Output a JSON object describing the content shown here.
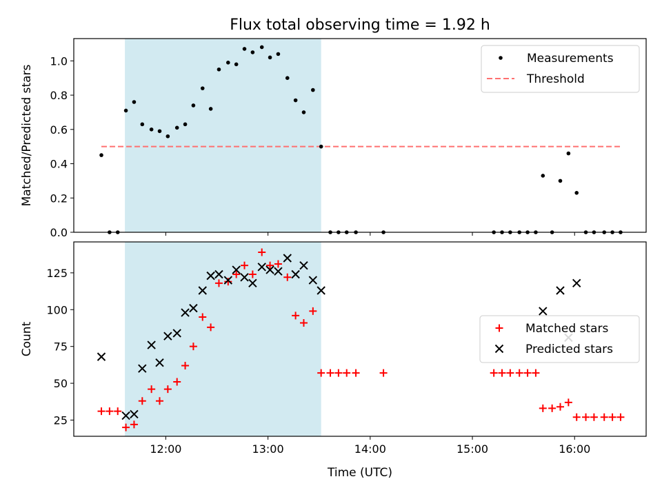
{
  "figure": {
    "title": "Flux total observing time = 1.92 h",
    "xlabel": "Time (UTC)",
    "shaded_span_hours": [
      11.6,
      13.52
    ],
    "shade_color": "#add8e6"
  },
  "chart_data": [
    {
      "type": "scatter",
      "name": "ratio-panel",
      "ylabel": "Matched/Predicted stars",
      "xlim_hours": [
        11.1,
        16.7
      ],
      "ylim": [
        0,
        1.13
      ],
      "yticks": [
        0.0,
        0.2,
        0.4,
        0.6,
        0.8,
        1.0
      ],
      "ytick_labels": [
        "0.0",
        "0.2",
        "0.4",
        "0.6",
        "0.8",
        "1.0"
      ],
      "legend": {
        "position": "top-right",
        "entries": [
          {
            "label": "Measurements",
            "marker": "dot",
            "color": "#000000"
          },
          {
            "label": "Threshold",
            "marker": "dash",
            "color": "#ff7070"
          }
        ]
      },
      "threshold": {
        "value": 0.5,
        "x_range_hours": [
          11.37,
          16.45
        ],
        "color": "#ff7070"
      },
      "series": [
        {
          "name": "Measurements",
          "color": "#000000",
          "points": [
            [
              11.37,
              0.45
            ],
            [
              11.45,
              0.0
            ],
            [
              11.53,
              0.0
            ],
            [
              11.61,
              0.71
            ],
            [
              11.69,
              0.76
            ],
            [
              11.77,
              0.63
            ],
            [
              11.86,
              0.6
            ],
            [
              11.94,
              0.59
            ],
            [
              12.02,
              0.56
            ],
            [
              12.11,
              0.61
            ],
            [
              12.19,
              0.63
            ],
            [
              12.27,
              0.74
            ],
            [
              12.36,
              0.84
            ],
            [
              12.44,
              0.72
            ],
            [
              12.52,
              0.95
            ],
            [
              12.61,
              0.99
            ],
            [
              12.69,
              0.98
            ],
            [
              12.77,
              1.07
            ],
            [
              12.85,
              1.05
            ],
            [
              12.94,
              1.08
            ],
            [
              13.02,
              1.02
            ],
            [
              13.1,
              1.04
            ],
            [
              13.19,
              0.9
            ],
            [
              13.27,
              0.77
            ],
            [
              13.35,
              0.7
            ],
            [
              13.44,
              0.83
            ],
            [
              13.52,
              0.5
            ],
            [
              13.61,
              0.0
            ],
            [
              13.69,
              0.0
            ],
            [
              13.77,
              0.0
            ],
            [
              13.86,
              0.0
            ],
            [
              14.13,
              0.0
            ],
            [
              15.21,
              0.0
            ],
            [
              15.29,
              0.0
            ],
            [
              15.37,
              0.0
            ],
            [
              15.46,
              0.0
            ],
            [
              15.54,
              0.0
            ],
            [
              15.62,
              0.0
            ],
            [
              15.69,
              0.33
            ],
            [
              15.78,
              0.0
            ],
            [
              15.86,
              0.3
            ],
            [
              15.94,
              0.46
            ],
            [
              16.02,
              0.23
            ],
            [
              16.11,
              0.0
            ],
            [
              16.19,
              0.0
            ],
            [
              16.29,
              0.0
            ],
            [
              16.37,
              0.0
            ],
            [
              16.45,
              0.0
            ]
          ]
        }
      ]
    },
    {
      "type": "scatter",
      "name": "count-panel",
      "ylabel": "Count",
      "xlim_hours": [
        11.1,
        16.7
      ],
      "ylim": [
        14,
        146
      ],
      "yticks": [
        25,
        50,
        75,
        100,
        125
      ],
      "ytick_labels": [
        "25",
        "50",
        "75",
        "100",
        "125"
      ],
      "xticks_hours": [
        12,
        13,
        14,
        15,
        16
      ],
      "xtick_labels": [
        "12:00",
        "13:00",
        "14:00",
        "15:00",
        "16:00"
      ],
      "legend": {
        "position": "center-right",
        "entries": [
          {
            "label": "Matched stars",
            "marker": "plus",
            "color": "#ff0000"
          },
          {
            "label": "Predicted stars",
            "marker": "x",
            "color": "#000000"
          }
        ]
      },
      "series": [
        {
          "name": "Matched stars",
          "color": "#ff0000",
          "points": [
            [
              11.37,
              31
            ],
            [
              11.45,
              31
            ],
            [
              11.53,
              31
            ],
            [
              11.61,
              20
            ],
            [
              11.69,
              22
            ],
            [
              11.77,
              38
            ],
            [
              11.86,
              46
            ],
            [
              11.94,
              38
            ],
            [
              12.02,
              46
            ],
            [
              12.11,
              51
            ],
            [
              12.19,
              62
            ],
            [
              12.27,
              75
            ],
            [
              12.36,
              95
            ],
            [
              12.44,
              88
            ],
            [
              12.52,
              118
            ],
            [
              12.61,
              119
            ],
            [
              12.69,
              124
            ],
            [
              12.77,
              130
            ],
            [
              12.85,
              124
            ],
            [
              12.94,
              139
            ],
            [
              13.02,
              130
            ],
            [
              13.1,
              131
            ],
            [
              13.19,
              122
            ],
            [
              13.27,
              96
            ],
            [
              13.35,
              91
            ],
            [
              13.44,
              99
            ],
            [
              13.52,
              57
            ],
            [
              13.61,
              57
            ],
            [
              13.69,
              57
            ],
            [
              13.77,
              57
            ],
            [
              13.86,
              57
            ],
            [
              14.13,
              57
            ],
            [
              15.21,
              57
            ],
            [
              15.29,
              57
            ],
            [
              15.37,
              57
            ],
            [
              15.46,
              57
            ],
            [
              15.54,
              57
            ],
            [
              15.62,
              57
            ],
            [
              15.69,
              33
            ],
            [
              15.78,
              33
            ],
            [
              15.86,
              34
            ],
            [
              15.94,
              37
            ],
            [
              16.02,
              27
            ],
            [
              16.11,
              27
            ],
            [
              16.19,
              27
            ],
            [
              16.29,
              27
            ],
            [
              16.37,
              27
            ],
            [
              16.45,
              27
            ]
          ]
        },
        {
          "name": "Predicted stars",
          "color": "#000000",
          "points": [
            [
              11.37,
              68
            ],
            [
              11.61,
              28
            ],
            [
              11.69,
              29
            ],
            [
              11.77,
              60
            ],
            [
              11.86,
              76
            ],
            [
              11.94,
              64
            ],
            [
              12.02,
              82
            ],
            [
              12.11,
              84
            ],
            [
              12.19,
              98
            ],
            [
              12.27,
              101
            ],
            [
              12.36,
              113
            ],
            [
              12.44,
              123
            ],
            [
              12.52,
              124
            ],
            [
              12.61,
              120
            ],
            [
              12.69,
              127
            ],
            [
              12.77,
              122
            ],
            [
              12.85,
              118
            ],
            [
              12.94,
              129
            ],
            [
              13.02,
              127
            ],
            [
              13.1,
              126
            ],
            [
              13.19,
              135
            ],
            [
              13.27,
              124
            ],
            [
              13.35,
              130
            ],
            [
              13.44,
              120
            ],
            [
              13.52,
              113
            ],
            [
              15.69,
              99
            ],
            [
              15.86,
              113
            ],
            [
              15.94,
              81
            ],
            [
              16.02,
              118
            ]
          ]
        }
      ]
    }
  ]
}
